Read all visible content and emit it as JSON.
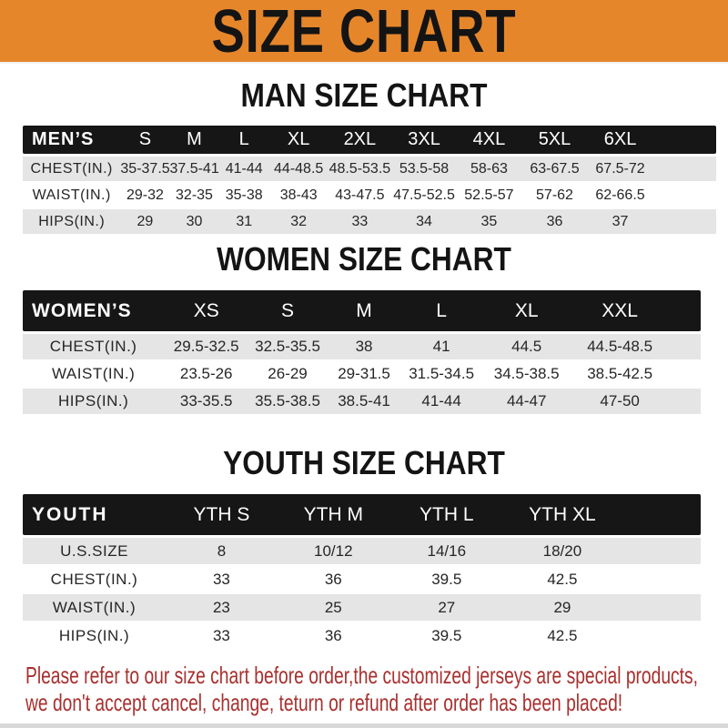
{
  "banner": {
    "title": "SIZE CHART"
  },
  "sections": {
    "man": {
      "heading": "MAN SIZE CHART"
    },
    "women": {
      "heading": "WOMEN SIZE CHART"
    },
    "youth": {
      "heading": "YOUTH SIZE CHART"
    }
  },
  "men_table": {
    "header": [
      "MEN’S",
      "S",
      "M",
      "L",
      "XL",
      "2XL",
      "3XL",
      "4XL",
      "5XL",
      "6XL"
    ],
    "rows": [
      {
        "label": "CHEST(IN.)",
        "values": [
          "35-37.5",
          "37.5-41",
          "41-44",
          "44-48.5",
          "48.5-53.5",
          "53.5-58",
          "58-63",
          "63-67.5",
          "67.5-72"
        ]
      },
      {
        "label": "WAIST(IN.)",
        "values": [
          "29-32",
          "32-35",
          "35-38",
          "38-43",
          "43-47.5",
          "47.5-52.5",
          "52.5-57",
          "57-62",
          "62-66.5"
        ]
      },
      {
        "label": "HIPS(IN.)",
        "values": [
          "29",
          "30",
          "31",
          "32",
          "33",
          "34",
          "35",
          "36",
          "37"
        ]
      }
    ]
  },
  "women_table": {
    "header": [
      "WOMEN’S",
      "XS",
      "S",
      "M",
      "L",
      "XL",
      "XXL"
    ],
    "rows": [
      {
        "label": "CHEST(IN.)",
        "values": [
          "29.5-32.5",
          "32.5-35.5",
          "38",
          "41",
          "44.5",
          "44.5-48.5"
        ]
      },
      {
        "label": "WAIST(IN.)",
        "values": [
          "23.5-26",
          "26-29",
          "29-31.5",
          "31.5-34.5",
          "34.5-38.5",
          "38.5-42.5"
        ]
      },
      {
        "label": "HIPS(IN.)",
        "values": [
          "33-35.5",
          "35.5-38.5",
          "38.5-41",
          "41-44",
          "44-47",
          "47-50"
        ]
      }
    ]
  },
  "youth_table": {
    "header": [
      "YOUTH",
      "YTH S",
      "YTH M",
      "YTH L",
      "YTH XL"
    ],
    "rows": [
      {
        "label": "U.S.SIZE",
        "values": [
          "8",
          "10/12",
          "14/16",
          "18/20"
        ]
      },
      {
        "label": "CHEST(IN.)",
        "values": [
          "33",
          "36",
          "39.5",
          "42.5"
        ]
      },
      {
        "label": "WAIST(IN.)",
        "values": [
          "23",
          "25",
          "27",
          "29"
        ]
      },
      {
        "label": "HIPS(IN.)",
        "values": [
          "33",
          "36",
          "39.5",
          "42.5"
        ]
      }
    ]
  },
  "footer": {
    "line1": "Please refer to our size chart before order,the customized jerseys are special products,",
    "line2": "we don't accept cancel, change, teturn or refund after order has been placed!"
  },
  "colors": {
    "orange": "#e6862b",
    "bar": "#161616",
    "row_gray": "#e5e5e5",
    "notice_red": "#a8302e",
    "text": "#1e1e1e"
  }
}
